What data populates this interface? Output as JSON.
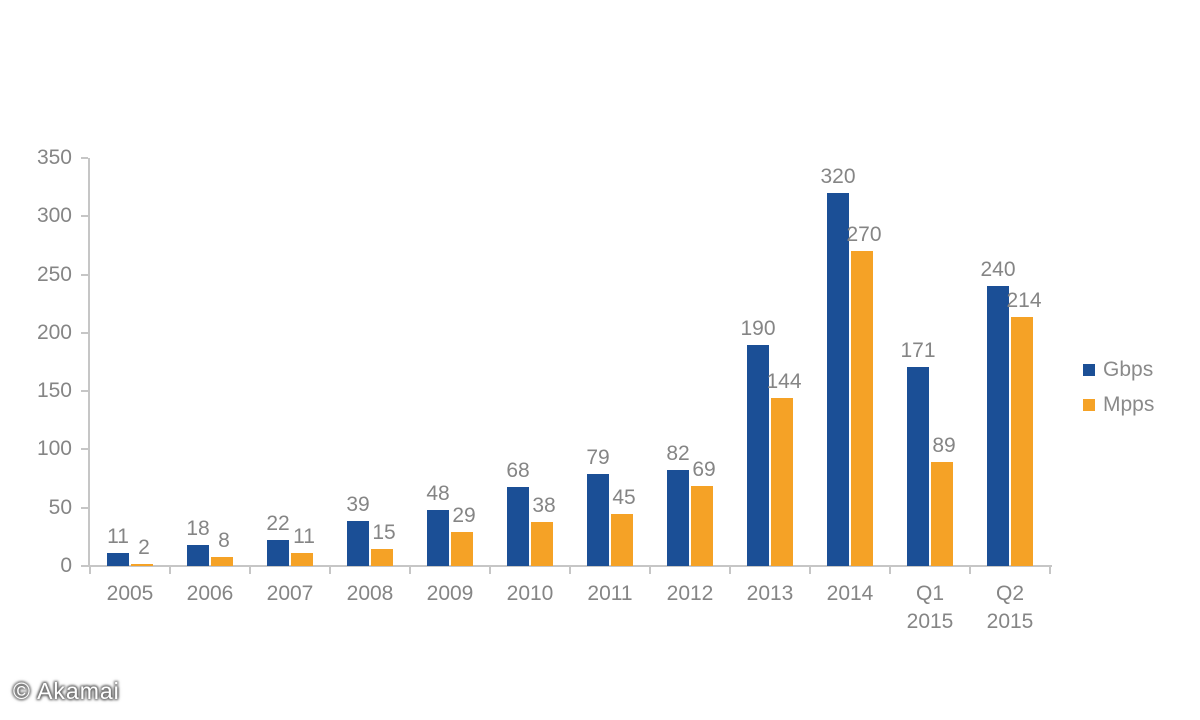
{
  "watermark": {
    "text": "© Akamai"
  },
  "legend": {
    "items": [
      {
        "label": "Gbps",
        "color": "#1b4f96"
      },
      {
        "label": "Mpps",
        "color": "#f5a226"
      }
    ]
  },
  "chart_data": {
    "type": "bar",
    "title": "",
    "xlabel": "",
    "ylabel": "",
    "categories": [
      "2005",
      "2006",
      "2007",
      "2008",
      "2009",
      "2010",
      "2011",
      "2012",
      "2013",
      "2014",
      "Q1\n2015",
      "Q2\n2015"
    ],
    "series": [
      {
        "name": "Gbps",
        "color": "#1b4f96",
        "values": [
          11,
          18,
          22,
          39,
          48,
          68,
          79,
          82,
          190,
          320,
          171,
          240
        ]
      },
      {
        "name": "Mpps",
        "color": "#f5a226",
        "values": [
          2,
          8,
          11,
          15,
          29,
          38,
          45,
          69,
          144,
          270,
          89,
          214
        ]
      }
    ],
    "ylim": [
      0,
      350
    ],
    "yticks": [
      0,
      50,
      100,
      150,
      200,
      250,
      300,
      350
    ],
    "grid": false,
    "value_labels": true,
    "legend_position": "right",
    "colors": {
      "axis": "#c6c6c6",
      "tick_label": "#858585",
      "value_label": "#858585"
    }
  }
}
